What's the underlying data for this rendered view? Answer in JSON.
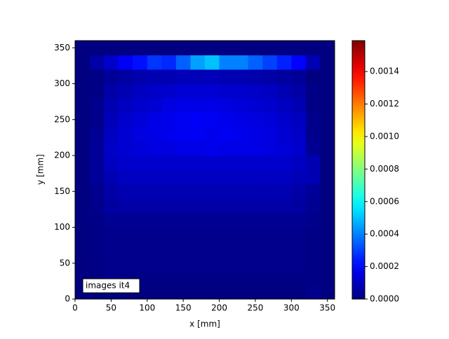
{
  "chart_data": {
    "type": "heatmap",
    "xlabel": "x [mm]",
    "ylabel": "y [mm]",
    "annotation": "images it4",
    "xlim": [
      0,
      360
    ],
    "ylim": [
      0,
      360
    ],
    "xticks": [
      0,
      50,
      100,
      150,
      200,
      250,
      300,
      350
    ],
    "yticks": [
      0,
      50,
      100,
      150,
      200,
      250,
      300,
      350
    ],
    "xbins": [
      0,
      20,
      40,
      60,
      80,
      100,
      120,
      140,
      160,
      180,
      200,
      220,
      240,
      260,
      280,
      300,
      320,
      340,
      360
    ],
    "ybins": [
      0,
      20,
      40,
      60,
      80,
      100,
      120,
      140,
      160,
      180,
      200,
      220,
      240,
      260,
      280,
      300,
      320,
      340,
      360
    ],
    "colormap": "jet",
    "clim": [
      0,
      0.00159
    ],
    "cticks": [
      {
        "value": 0,
        "label": "0.0000"
      },
      {
        "value": 0.0002,
        "label": "0.0002"
      },
      {
        "value": 0.0004,
        "label": "0.0004"
      },
      {
        "value": 0.0006,
        "label": "0.0006"
      },
      {
        "value": 0.0008,
        "label": "0.0008"
      },
      {
        "value": 0.001,
        "label": "0.0010"
      },
      {
        "value": 0.0012,
        "label": "0.0012"
      },
      {
        "value": 0.0014,
        "label": "0.0014"
      }
    ],
    "z": [
      [
        0,
        0,
        0,
        0,
        0,
        0,
        0,
        0,
        0,
        0,
        0,
        0,
        0,
        0,
        0,
        0,
        2e-05,
        0
      ],
      [
        0,
        0,
        2e-05,
        1e-05,
        1e-05,
        1e-05,
        1e-05,
        1e-05,
        1e-05,
        1e-05,
        1e-05,
        1e-05,
        1e-05,
        1e-05,
        1e-05,
        1e-05,
        1e-05,
        0
      ],
      [
        0,
        1e-05,
        2e-05,
        2e-05,
        2e-05,
        2e-05,
        2e-05,
        2e-05,
        2e-05,
        2e-05,
        2e-05,
        2e-05,
        2e-05,
        2e-05,
        2e-05,
        2e-05,
        1e-05,
        0
      ],
      [
        0,
        1e-05,
        2e-05,
        2e-05,
        2e-05,
        2e-05,
        2e-05,
        2e-05,
        2e-05,
        2e-05,
        2e-05,
        2e-05,
        2e-05,
        2e-05,
        2e-05,
        2e-05,
        1e-05,
        0
      ],
      [
        0,
        1e-05,
        2e-05,
        2e-05,
        2e-05,
        2e-05,
        2e-05,
        2e-05,
        2e-05,
        2e-05,
        2e-05,
        2e-05,
        2e-05,
        2e-05,
        2e-05,
        2e-05,
        1e-05,
        0
      ],
      [
        0,
        1e-05,
        3e-05,
        3e-05,
        3e-05,
        3e-05,
        3e-05,
        3e-05,
        3e-05,
        3e-05,
        3e-05,
        3e-05,
        3e-05,
        3e-05,
        3e-05,
        3e-05,
        2e-05,
        0
      ],
      [
        0,
        2e-05,
        5e-05,
        6e-05,
        6e-05,
        6e-05,
        6e-05,
        6e-05,
        6e-05,
        6e-05,
        6e-05,
        6e-05,
        6e-05,
        6e-05,
        6e-05,
        5e-05,
        3e-05,
        0
      ],
      [
        0,
        2e-05,
        6e-05,
        8e-05,
        8e-05,
        8e-05,
        8e-05,
        8e-05,
        8e-05,
        8e-05,
        8e-05,
        8e-05,
        8e-05,
        8e-05,
        8e-05,
        6e-05,
        4e-05,
        0
      ],
      [
        0,
        4e-05,
        8e-05,
        0.0001,
        0.0001,
        0.0001,
        0.0001,
        0.0001,
        0.0001,
        0.0001,
        0.0001,
        0.0001,
        0.0001,
        0.0001,
        0.0001,
        9e-05,
        8e-05,
        0
      ],
      [
        0,
        4e-05,
        0.0001,
        0.00012,
        0.00012,
        0.00012,
        0.00012,
        0.00012,
        0.00012,
        0.00012,
        0.00012,
        0.00012,
        0.00012,
        0.00012,
        0.00012,
        0.0001,
        8e-05,
        0
      ],
      [
        0,
        4e-05,
        0.00011,
        0.00013,
        0.00014,
        0.00015,
        0.00015,
        0.00016,
        0.00016,
        0.00017,
        0.00016,
        0.00016,
        0.00016,
        0.00015,
        0.00014,
        0.00012,
        3e-05,
        0
      ],
      [
        0,
        3e-05,
        0.0001,
        0.00013,
        0.00015,
        0.00016,
        0.00017,
        0.00018,
        0.00018,
        0.00017,
        0.00018,
        0.00017,
        0.00016,
        0.00015,
        0.00013,
        0.00011,
        2e-05,
        0
      ],
      [
        0,
        2e-05,
        9e-05,
        0.00012,
        0.00014,
        0.00016,
        0.00017,
        0.00018,
        0.00019,
        0.00018,
        0.00017,
        0.00016,
        0.00015,
        0.00014,
        0.00012,
        0.0001,
        2e-05,
        0
      ],
      [
        0,
        2e-05,
        8e-05,
        0.0001,
        0.00012,
        0.00013,
        0.00015,
        0.00016,
        0.00016,
        0.00016,
        0.00015,
        0.00014,
        0.00013,
        0.00012,
        0.0001,
        8e-05,
        1e-05,
        0
      ],
      [
        0,
        1e-05,
        6e-05,
        8e-05,
        0.0001,
        0.00011,
        0.00012,
        0.00013,
        0.00013,
        0.00013,
        0.00012,
        0.00012,
        0.00011,
        0.0001,
        8e-05,
        6e-05,
        1e-05,
        0
      ],
      [
        0,
        1e-05,
        4e-05,
        5e-05,
        7e-05,
        8e-05,
        8e-05,
        9e-05,
        9e-05,
        9e-05,
        8e-05,
        8e-05,
        7e-05,
        6e-05,
        5e-05,
        4e-05,
        0,
        0
      ],
      [
        0,
        6e-05,
        0.00012,
        0.00018,
        0.00022,
        0.00028,
        0.00026,
        0.00035,
        0.00045,
        0.0005,
        0.0004,
        0.0004,
        0.00035,
        0.0003,
        0.00025,
        0.0002,
        8e-05,
        0
      ],
      [
        0,
        0,
        0,
        0,
        0,
        0,
        0,
        0,
        0,
        0,
        0,
        0,
        0,
        0,
        0,
        0,
        0,
        0
      ]
    ]
  }
}
